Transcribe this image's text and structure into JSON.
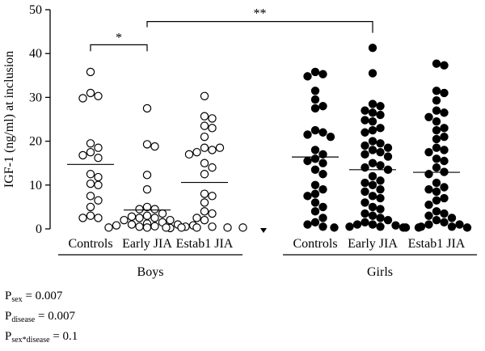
{
  "chart_data": {
    "type": "scatter",
    "ylabel": "IGF-1 (ng/ml) at inclusion",
    "ylim": [
      0,
      50
    ],
    "yticks": [
      0,
      10,
      20,
      30,
      40,
      50
    ],
    "grid": false,
    "groups": [
      {
        "name": "Boys",
        "categories": [
          {
            "label": "Controls",
            "marker": "open",
            "mean": 14.7,
            "values": [
              35.8,
              31.0,
              30.3,
              29.8,
              19.5,
              18.5,
              17.5,
              16.8,
              16.2,
              12.5,
              11.8,
              10.3,
              10.0,
              7.5,
              6.5,
              5.0,
              3.0,
              2.5,
              2.5
            ]
          },
          {
            "label": "Early JIA",
            "marker": "open",
            "mean": 4.3,
            "values": [
              27.5,
              19.3,
              18.8,
              12.3,
              9.0,
              5.0,
              4.5,
              4.5,
              3.5,
              3.0,
              2.8,
              2.5,
              2.5,
              2.0,
              2.0,
              1.5,
              1.2,
              1.0,
              1.0,
              0.8,
              0.8,
              0.6,
              0.5,
              0.5,
              0.3,
              0.3,
              0.2
            ]
          },
          {
            "label": "Estab1 JIA",
            "marker": "open",
            "mean": 10.6,
            "values": [
              30.3,
              25.7,
              25.2,
              23.5,
              23.0,
              21.0,
              18.5,
              18.5,
              18.0,
              17.5,
              17.0,
              15.0,
              14.0,
              12.5,
              8.0,
              7.5,
              6.0,
              4.0,
              3.5,
              2.5,
              2.0,
              0.5,
              0.3,
              0.3,
              0.3,
              0.3,
              0.3
            ]
          }
        ]
      },
      {
        "name": "Girls",
        "categories": [
          {
            "label": "Controls",
            "marker": "filled",
            "mean": 16.4,
            "values": [
              35.8,
              35.3,
              34.8,
              31.5,
              29.5,
              28.0,
              27.5,
              22.5,
              22.0,
              21.5,
              21.0,
              18.0,
              17.0,
              16.0,
              15.5,
              15.0,
              13.5,
              12.5,
              10.0,
              9.0,
              8.0,
              7.5,
              6.0,
              5.0,
              4.0,
              2.5,
              1.5,
              1.0,
              0.5
            ]
          },
          {
            "label": "Early JIA",
            "marker": "filled",
            "mean": 13.5,
            "values": [
              41.3,
              35.5,
              28.5,
              28.0,
              27.0,
              26.5,
              26.0,
              24.8,
              24.5,
              23.0,
              22.5,
              22.0,
              20.0,
              19.5,
              19.0,
              18.5,
              18.0,
              17.5,
              17.0,
              16.5,
              15.0,
              14.5,
              14.0,
              13.5,
              12.0,
              11.0,
              10.5,
              10.0,
              9.0,
              8.5,
              7.5,
              7.0,
              6.0,
              5.0,
              4.5,
              3.5,
              3.0,
              2.5,
              2.0,
              1.5,
              1.0,
              1.0,
              0.8,
              0.5,
              0.5,
              0.3,
              0.3,
              0.3
            ]
          },
          {
            "label": "Estab1 JIA",
            "marker": "filled",
            "mean": 12.9,
            "values": [
              37.7,
              37.3,
              31.5,
              31.0,
              29.3,
              27.0,
              26.5,
              25.5,
              24.5,
              23.0,
              22.5,
              21.0,
              20.5,
              18.5,
              18.0,
              17.5,
              16.0,
              15.5,
              14.0,
              13.0,
              12.5,
              10.5,
              9.5,
              9.0,
              8.5,
              7.0,
              6.5,
              5.5,
              4.0,
              3.5,
              3.0,
              2.5,
              2.0,
              1.5,
              1.0,
              1.0,
              0.5,
              0.5,
              0.3,
              0.3
            ]
          }
        ]
      }
    ],
    "annotations": [
      {
        "label": "*",
        "from": "Boys/Controls",
        "to": "Boys/Early JIA"
      },
      {
        "label": "**",
        "from": "Boys/Early JIA",
        "to": "Girls/Early JIA"
      }
    ]
  },
  "stats": {
    "sex": {
      "p": "P",
      "sub": "sex",
      "value": " = 0.007"
    },
    "disease": {
      "p": "P",
      "sub": "disease",
      "value": " = 0.007"
    },
    "interaction": {
      "p": "P",
      "sub": "sex*disease",
      "value": " = 0.1"
    }
  }
}
